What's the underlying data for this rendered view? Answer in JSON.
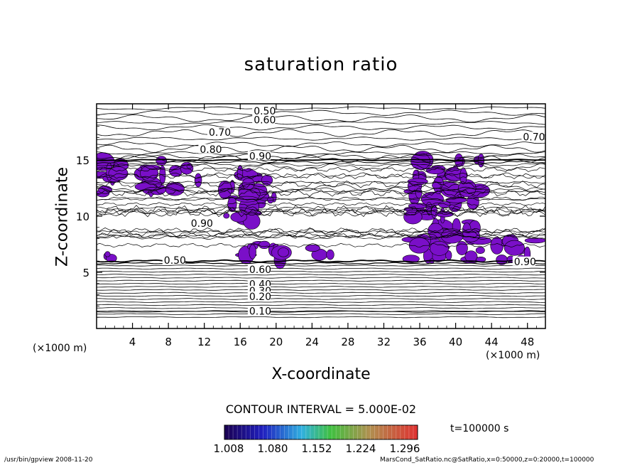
{
  "chart_data": {
    "type": "contour",
    "title": "saturation ratio",
    "xlabel": "X-coordinate",
    "ylabel": "Z-coordinate",
    "x_unit": "(×1000 m)",
    "xlim": [
      0,
      50
    ],
    "ylim": [
      0,
      20
    ],
    "x_ticks": [
      "4",
      "8",
      "12",
      "16",
      "20",
      "24",
      "28",
      "32",
      "36",
      "40",
      "44",
      "48"
    ],
    "y_ticks": [
      "5",
      "10",
      "15"
    ],
    "contour_labels": [
      {
        "text": "0.50",
        "x": 17.5,
        "z": 19.3
      },
      {
        "text": "0.60",
        "x": 17.5,
        "z": 18.5
      },
      {
        "text": "0.70",
        "x": 12.5,
        "z": 17.4
      },
      {
        "text": "0.70",
        "x": 47.5,
        "z": 17.0
      },
      {
        "text": "0.80",
        "x": 11.5,
        "z": 15.9
      },
      {
        "text": "0.90",
        "x": 17.0,
        "z": 15.3
      },
      {
        "text": "0.90",
        "x": 10.5,
        "z": 9.3
      },
      {
        "text": "0.90",
        "x": 46.5,
        "z": 5.9
      },
      {
        "text": "0.50",
        "x": 7.5,
        "z": 6.0
      },
      {
        "text": "0.60",
        "x": 17.0,
        "z": 5.2
      },
      {
        "text": "0.40",
        "x": 17.0,
        "z": 3.9
      },
      {
        "text": "0.30",
        "x": 17.0,
        "z": 3.3
      },
      {
        "text": "0.20",
        "x": 17.0,
        "z": 2.8
      },
      {
        "text": "0.10",
        "x": 17.0,
        "z": 1.5
      }
    ],
    "supersaturated_regions": [
      {
        "x": [
          0,
          4
        ],
        "z": [
          12,
          15
        ]
      },
      {
        "x": [
          5,
          9
        ],
        "z": [
          12,
          15
        ]
      },
      {
        "x": [
          10,
          12
        ],
        "z": [
          13,
          14.5
        ]
      },
      {
        "x": [
          14,
          20
        ],
        "z": [
          9.5,
          14
        ]
      },
      {
        "x": [
          16,
          21
        ],
        "z": [
          6,
          8
        ]
      },
      {
        "x": [
          0,
          2
        ],
        "z": [
          6,
          7
        ]
      },
      {
        "x": [
          35,
          43
        ],
        "z": [
          6,
          15
        ]
      },
      {
        "x": [
          44,
          49
        ],
        "z": [
          6,
          8
        ]
      },
      {
        "x": [
          24,
          27
        ],
        "z": [
          6.5,
          7.5
        ]
      }
    ],
    "colorbar": {
      "range": [
        1.008,
        1.332
      ],
      "ticks": [
        "1.008",
        "1.080",
        "1.152",
        "1.224",
        "1.296"
      ]
    }
  },
  "contour_interval_text": "CONTOUR INTERVAL = 5.000E-02",
  "time_text": "t=100000  s",
  "footer_left": "/usr/bin/gpview   2008-11-20",
  "footer_right": "MarsCond_SatRatio.nc@SatRatio,x=0:50000,z=0:20000,t=100000"
}
